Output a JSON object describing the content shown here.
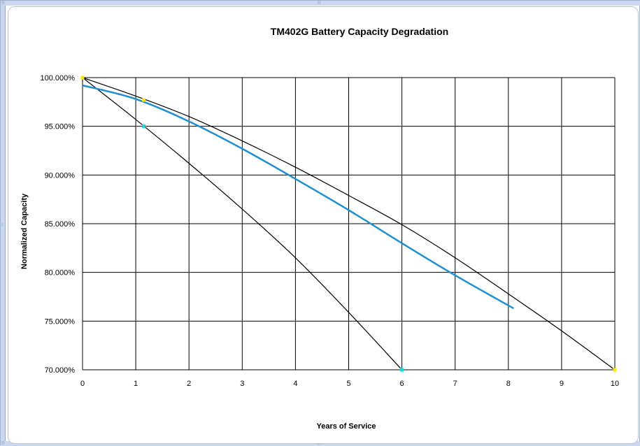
{
  "chart_data": {
    "type": "line",
    "title": "TM402G Battery Capacity Degradation",
    "xlabel": "Years of Service",
    "ylabel": "Normalized Capacity",
    "xlim": [
      0,
      10
    ],
    "ylim": [
      0.7,
      1.0
    ],
    "x_ticks": [
      "0",
      "1",
      "2",
      "3",
      "4",
      "5",
      "6",
      "7",
      "8",
      "9",
      "10"
    ],
    "y_ticks": [
      "70.000%",
      "75.000%",
      "80.000%",
      "85.000%",
      "90.000%",
      "95.000%",
      "100.000%"
    ],
    "grid": true,
    "legend": "none",
    "series": [
      {
        "color": "#000000",
        "marker_color": "#00e0e0",
        "x": [
          0,
          1,
          2,
          3,
          4,
          5,
          6
        ],
        "y": [
          1.0,
          0.957,
          0.912,
          0.865,
          0.815,
          0.759,
          0.7
        ],
        "markers": [
          {
            "x": 0,
            "y": 1.0
          },
          {
            "x": 1.15,
            "y": 0.95
          },
          {
            "x": 6,
            "y": 0.7
          }
        ]
      },
      {
        "color": "#000000",
        "marker_color": "#ffe600",
        "x": [
          0,
          1,
          2,
          3,
          4,
          5,
          6,
          7,
          8,
          9,
          10
        ],
        "y": [
          1.0,
          0.981,
          0.96,
          0.935,
          0.908,
          0.879,
          0.849,
          0.815,
          0.778,
          0.74,
          0.7
        ],
        "markers": [
          {
            "x": 0,
            "y": 1.0
          },
          {
            "x": 1.15,
            "y": 0.977
          },
          {
            "x": 10,
            "y": 0.7
          }
        ]
      },
      {
        "color": "#1f8fcf",
        "x": [
          0,
          1,
          2,
          3,
          4,
          5,
          6,
          7,
          8.1
        ],
        "y": [
          0.992,
          0.978,
          0.955,
          0.927,
          0.896,
          0.864,
          0.83,
          0.797,
          0.763
        ]
      }
    ]
  }
}
